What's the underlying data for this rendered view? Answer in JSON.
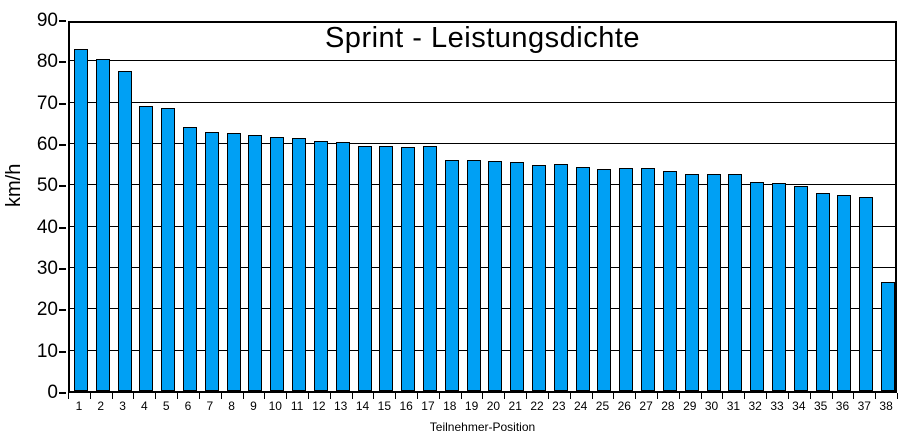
{
  "chart_data": {
    "type": "bar",
    "title": "Sprint - Leistungsdichte",
    "xlabel": "Teilnehmer-Position",
    "ylabel": "km/h",
    "ylim": [
      0,
      90
    ],
    "ytick_step": 10,
    "grid": true,
    "legend": "none",
    "bar_color": "#00A0F4",
    "bar_border_color": "#000000",
    "categories": [
      "1",
      "2",
      "3",
      "4",
      "5",
      "6",
      "7",
      "8",
      "9",
      "10",
      "11",
      "12",
      "13",
      "14",
      "15",
      "16",
      "17",
      "18",
      "19",
      "20",
      "21",
      "22",
      "23",
      "24",
      "25",
      "26",
      "27",
      "28",
      "29",
      "30",
      "31",
      "32",
      "33",
      "34",
      "35",
      "36",
      "37",
      "38"
    ],
    "values": [
      82.7,
      80.3,
      77.3,
      69.0,
      68.5,
      63.8,
      62.6,
      62.3,
      62.0,
      61.5,
      61.1,
      60.6,
      60.3,
      59.3,
      59.2,
      59.1,
      59.2,
      56.0,
      56.0,
      55.6,
      55.5,
      54.7,
      54.9,
      54.2,
      53.8,
      54.0,
      53.9,
      53.2,
      52.5,
      52.4,
      52.4,
      50.6,
      50.3,
      49.6,
      47.8,
      47.4,
      46.9,
      26.3
    ]
  }
}
